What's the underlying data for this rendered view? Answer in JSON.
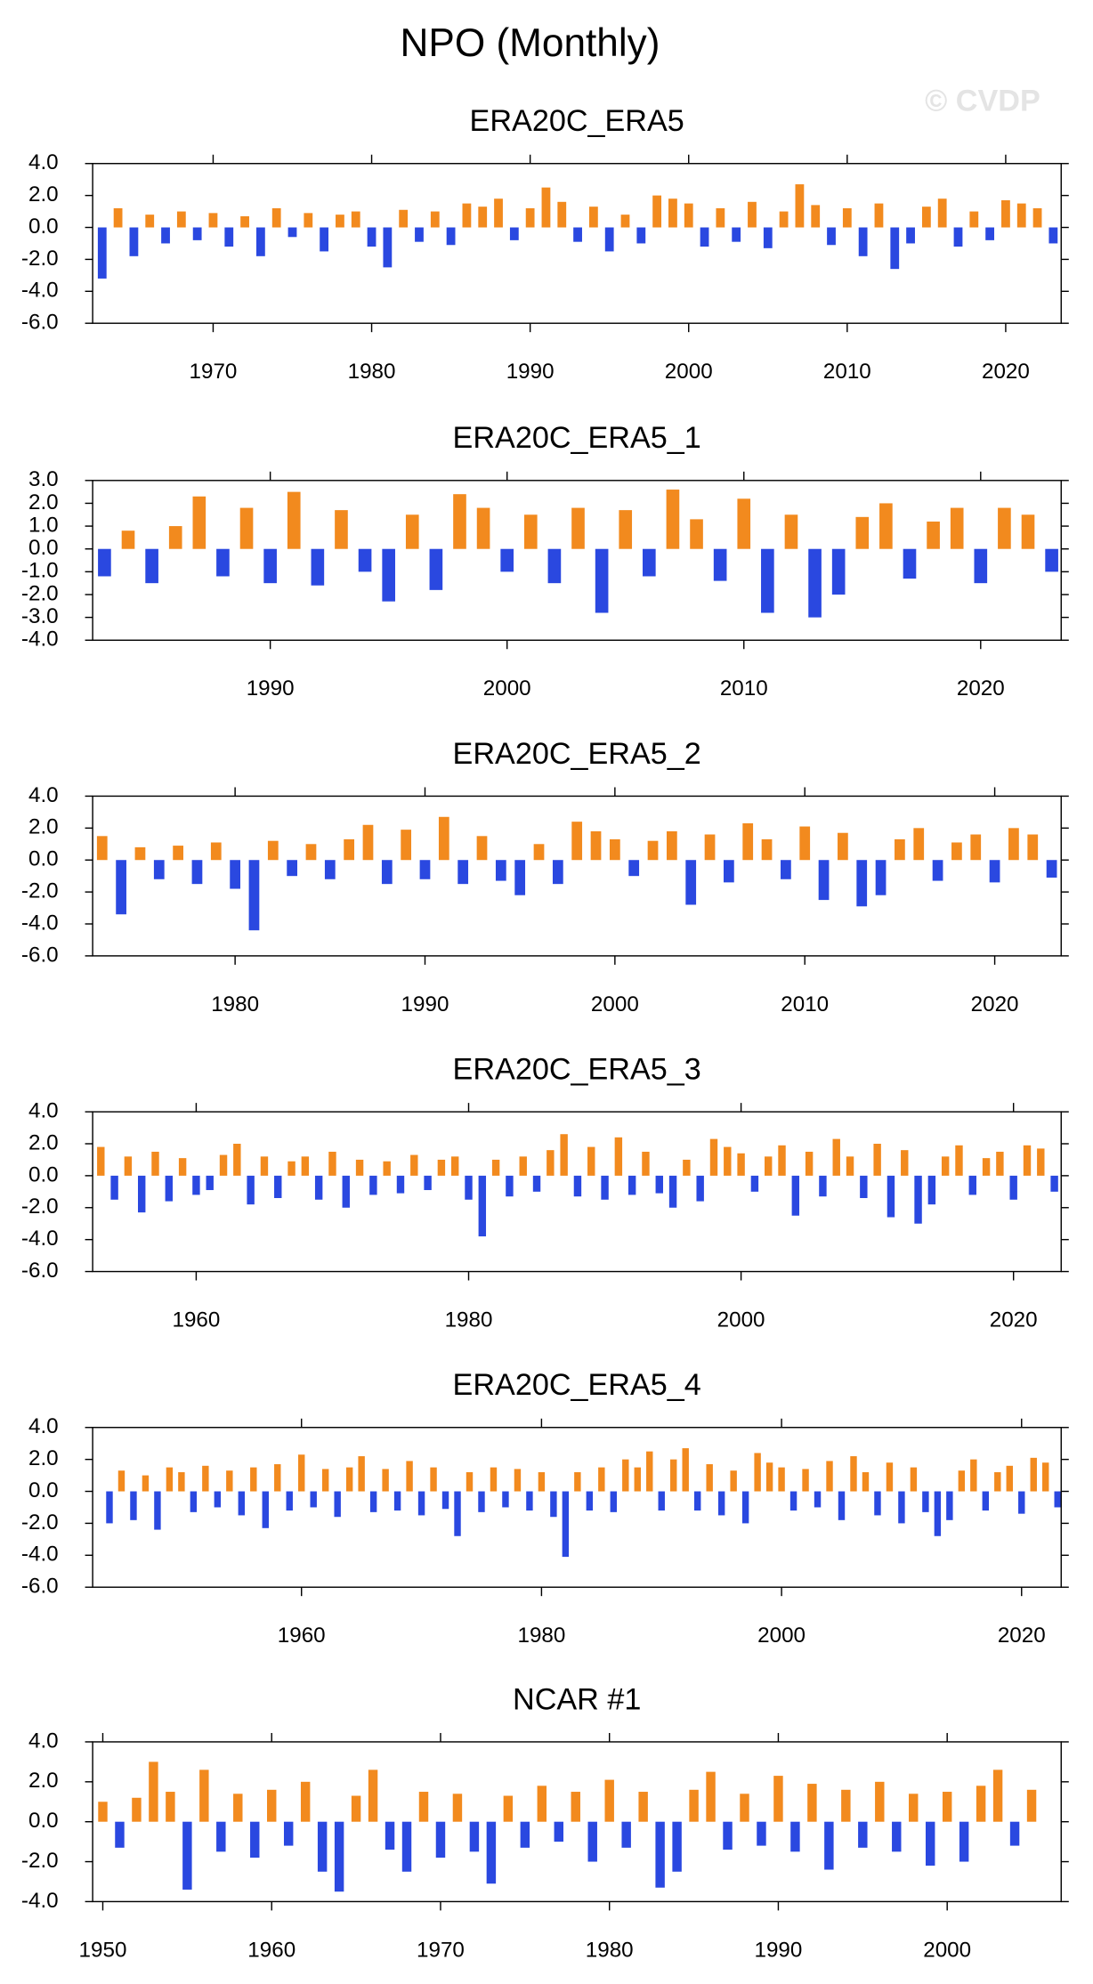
{
  "title": "NPO (Monthly)",
  "watermark": "© CVDP",
  "chart_data": [
    {
      "type": "bar",
      "title": "ERA20C_ERA5",
      "positive_color": "#f28a1e",
      "negative_color": "#2a48e0",
      "x": [
        1963,
        1964,
        1965,
        1966,
        1967,
        1968,
        1969,
        1970,
        1971,
        1972,
        1973,
        1974,
        1975,
        1976,
        1977,
        1978,
        1979,
        1980,
        1981,
        1982,
        1983,
        1984,
        1985,
        1986,
        1987,
        1988,
        1989,
        1990,
        1991,
        1992,
        1993,
        1994,
        1995,
        1996,
        1997,
        1998,
        1999,
        2000,
        2001,
        2002,
        2003,
        2004,
        2005,
        2006,
        2007,
        2008,
        2009,
        2010,
        2011,
        2012,
        2013,
        2014,
        2015,
        2016,
        2017,
        2018,
        2019,
        2020,
        2021,
        2022,
        2023
      ],
      "values": [
        -3.2,
        1.2,
        -1.8,
        0.8,
        -1.0,
        1.0,
        -0.8,
        0.9,
        -1.2,
        0.7,
        -1.8,
        1.2,
        -0.6,
        0.9,
        -1.5,
        0.8,
        1.0,
        -1.2,
        -2.5,
        1.1,
        -0.9,
        1.0,
        -1.1,
        1.5,
        1.3,
        1.8,
        -0.8,
        1.2,
        2.5,
        1.6,
        -0.9,
        1.3,
        -1.5,
        0.8,
        -1.0,
        2.0,
        1.8,
        1.5,
        -1.2,
        1.2,
        -0.9,
        1.6,
        -1.3,
        1.0,
        2.7,
        1.4,
        -1.1,
        1.2,
        -1.8,
        1.5,
        -2.6,
        -1.0,
        1.3,
        1.8,
        -1.2,
        1.0,
        -0.8,
        1.7,
        1.5,
        1.2,
        -1.0
      ],
      "xlim": [
        1962.4,
        2023.5
      ],
      "ylim": [
        -6,
        4
      ],
      "xticks": [
        1970,
        1980,
        1990,
        2000,
        2010,
        2020
      ],
      "yticks": [
        {
          "value": -6,
          "label": "-6.0"
        },
        {
          "value": -4,
          "label": "-4.0"
        },
        {
          "value": -2,
          "label": "-2.0"
        },
        {
          "value": 0,
          "label": "0.0"
        },
        {
          "value": 2,
          "label": "2.0"
        },
        {
          "value": 4,
          "label": "4.0"
        }
      ]
    },
    {
      "type": "bar",
      "title": "ERA20C_ERA5_1",
      "positive_color": "#f28a1e",
      "negative_color": "#2a48e0",
      "x": [
        1983,
        1984,
        1985,
        1986,
        1987,
        1988,
        1989,
        1990,
        1991,
        1992,
        1993,
        1994,
        1995,
        1996,
        1997,
        1998,
        1999,
        2000,
        2001,
        2002,
        2003,
        2004,
        2005,
        2006,
        2007,
        2008,
        2009,
        2010,
        2011,
        2012,
        2013,
        2014,
        2015,
        2016,
        2017,
        2018,
        2019,
        2020,
        2021,
        2022,
        2023
      ],
      "values": [
        -1.2,
        0.8,
        -1.5,
        1.0,
        2.3,
        -1.2,
        1.8,
        -1.5,
        2.5,
        -1.6,
        1.7,
        -1.0,
        -2.3,
        1.5,
        -1.8,
        2.4,
        1.8,
        -1.0,
        1.5,
        -1.5,
        1.8,
        -2.8,
        1.7,
        -1.2,
        2.6,
        1.3,
        -1.4,
        2.2,
        -2.8,
        1.5,
        -3.0,
        -2.0,
        1.4,
        2.0,
        -1.3,
        1.2,
        1.8,
        -1.5,
        1.8,
        1.5,
        -1.0
      ],
      "xlim": [
        1982.5,
        2023.4
      ],
      "ylim": [
        -4,
        3
      ],
      "xticks": [
        1990,
        2000,
        2010,
        2020
      ],
      "yticks": [
        {
          "value": -4,
          "label": "-4.0"
        },
        {
          "value": -3,
          "label": "-3.0"
        },
        {
          "value": -2,
          "label": "-2.0"
        },
        {
          "value": -1,
          "label": "-1.0"
        },
        {
          "value": 0,
          "label": "0.0"
        },
        {
          "value": 1,
          "label": "1.0"
        },
        {
          "value": 2,
          "label": "2.0"
        },
        {
          "value": 3,
          "label": "3.0"
        }
      ]
    },
    {
      "type": "bar",
      "title": "ERA20C_ERA5_2",
      "positive_color": "#f28a1e",
      "negative_color": "#2a48e0",
      "x": [
        1973,
        1974,
        1975,
        1976,
        1977,
        1978,
        1979,
        1980,
        1981,
        1982,
        1983,
        1984,
        1985,
        1986,
        1987,
        1988,
        1989,
        1990,
        1991,
        1992,
        1993,
        1994,
        1995,
        1996,
        1997,
        1998,
        1999,
        2000,
        2001,
        2002,
        2003,
        2004,
        2005,
        2006,
        2007,
        2008,
        2009,
        2010,
        2011,
        2012,
        2013,
        2014,
        2015,
        2016,
        2017,
        2018,
        2019,
        2020,
        2021,
        2022,
        2023
      ],
      "values": [
        1.5,
        -3.4,
        0.8,
        -1.2,
        0.9,
        -1.5,
        1.1,
        -1.8,
        -4.4,
        1.2,
        -1.0,
        1.0,
        -1.2,
        1.3,
        2.2,
        -1.5,
        1.9,
        -1.2,
        2.7,
        -1.5,
        1.5,
        -1.3,
        -2.2,
        1.0,
        -1.5,
        2.4,
        1.8,
        1.3,
        -1.0,
        1.2,
        1.8,
        -2.8,
        1.6,
        -1.4,
        2.3,
        1.3,
        -1.2,
        2.1,
        -2.5,
        1.7,
        -2.9,
        -2.2,
        1.3,
        2.0,
        -1.3,
        1.1,
        1.6,
        -1.4,
        2.0,
        1.6,
        -1.1
      ],
      "xlim": [
        1972.5,
        2023.5
      ],
      "ylim": [
        -6,
        4
      ],
      "xticks": [
        1980,
        1990,
        2000,
        2010,
        2020
      ],
      "yticks": [
        {
          "value": -6,
          "label": "-6.0"
        },
        {
          "value": -4,
          "label": "-4.0"
        },
        {
          "value": -2,
          "label": "-2.0"
        },
        {
          "value": 0,
          "label": "0.0"
        },
        {
          "value": 2,
          "label": "2.0"
        },
        {
          "value": 4,
          "label": "4.0"
        }
      ]
    },
    {
      "type": "bar",
      "title": "ERA20C_ERA5_3",
      "positive_color": "#f28a1e",
      "negative_color": "#2a48e0",
      "x": [
        1953,
        1954,
        1955,
        1956,
        1957,
        1958,
        1959,
        1960,
        1961,
        1962,
        1963,
        1964,
        1965,
        1966,
        1967,
        1968,
        1969,
        1970,
        1971,
        1972,
        1973,
        1974,
        1975,
        1976,
        1977,
        1978,
        1979,
        1980,
        1981,
        1982,
        1983,
        1984,
        1985,
        1986,
        1987,
        1988,
        1989,
        1990,
        1991,
        1992,
        1993,
        1994,
        1995,
        1996,
        1997,
        1998,
        1999,
        2000,
        2001,
        2002,
        2003,
        2004,
        2005,
        2006,
        2007,
        2008,
        2009,
        2010,
        2011,
        2012,
        2013,
        2014,
        2015,
        2016,
        2017,
        2018,
        2019,
        2020,
        2021,
        2022,
        2023
      ],
      "values": [
        1.8,
        -1.5,
        1.2,
        -2.3,
        1.5,
        -1.6,
        1.1,
        -1.2,
        -0.9,
        1.3,
        2.0,
        -1.8,
        1.2,
        -1.4,
        0.9,
        1.2,
        -1.5,
        1.5,
        -2.0,
        1.0,
        -1.2,
        0.9,
        -1.1,
        1.3,
        -0.9,
        1.0,
        1.2,
        -1.5,
        -3.8,
        1.0,
        -1.3,
        1.2,
        -1.0,
        1.6,
        2.6,
        -1.3,
        1.8,
        -1.5,
        2.4,
        -1.2,
        1.5,
        -1.1,
        -2.0,
        1.0,
        -1.6,
        2.3,
        1.8,
        1.4,
        -1.0,
        1.2,
        1.9,
        -2.5,
        1.5,
        -1.3,
        2.3,
        1.2,
        -1.4,
        2.0,
        -2.6,
        1.6,
        -3.0,
        -1.8,
        1.2,
        1.9,
        -1.2,
        1.1,
        1.5,
        -1.5,
        1.9,
        1.7,
        -1.0
      ],
      "xlim": [
        1952.4,
        2023.5
      ],
      "ylim": [
        -6,
        4
      ],
      "xticks": [
        1960,
        1980,
        2000,
        2020
      ],
      "yticks": [
        {
          "value": -6,
          "label": "-6.0"
        },
        {
          "value": -4,
          "label": "-4.0"
        },
        {
          "value": -2,
          "label": "-2.0"
        },
        {
          "value": 0,
          "label": "0.0"
        },
        {
          "value": 2,
          "label": "2.0"
        },
        {
          "value": 4,
          "label": "4.0"
        }
      ]
    },
    {
      "type": "bar",
      "title": "ERA20C_ERA5_4",
      "positive_color": "#f28a1e",
      "negative_color": "#2a48e0",
      "x": [
        1944,
        1945,
        1946,
        1947,
        1948,
        1949,
        1950,
        1951,
        1952,
        1953,
        1954,
        1955,
        1956,
        1957,
        1958,
        1959,
        1960,
        1961,
        1962,
        1963,
        1964,
        1965,
        1966,
        1967,
        1968,
        1969,
        1970,
        1971,
        1972,
        1973,
        1974,
        1975,
        1976,
        1977,
        1978,
        1979,
        1980,
        1981,
        1982,
        1983,
        1984,
        1985,
        1986,
        1987,
        1988,
        1989,
        1990,
        1991,
        1992,
        1993,
        1994,
        1995,
        1996,
        1997,
        1998,
        1999,
        2000,
        2001,
        2002,
        2003,
        2004,
        2005,
        2006,
        2007,
        2008,
        2009,
        2010,
        2011,
        2012,
        2013,
        2014,
        2015,
        2016,
        2017,
        2018,
        2019,
        2020,
        2021,
        2022,
        2023
      ],
      "values": [
        -2.0,
        1.3,
        -1.8,
        1.0,
        -2.4,
        1.5,
        1.2,
        -1.3,
        1.6,
        -1.0,
        1.3,
        -1.5,
        1.5,
        -2.3,
        1.7,
        -1.2,
        2.3,
        -1.0,
        1.4,
        -1.6,
        1.5,
        2.2,
        -1.3,
        1.4,
        -1.2,
        1.9,
        -1.5,
        1.5,
        -1.1,
        -2.8,
        1.2,
        -1.3,
        1.5,
        -1.0,
        1.4,
        -1.2,
        1.2,
        -1.6,
        -4.1,
        1.2,
        -1.2,
        1.5,
        -1.3,
        2.0,
        1.5,
        2.5,
        -1.2,
        2.0,
        2.7,
        -1.2,
        1.7,
        -1.5,
        1.3,
        -2.0,
        2.4,
        1.8,
        1.5,
        -1.2,
        1.4,
        -1.0,
        1.9,
        -1.8,
        2.2,
        1.2,
        -1.5,
        1.8,
        -2.0,
        1.5,
        -1.3,
        -2.8,
        -1.8,
        1.3,
        2.0,
        -1.2,
        1.2,
        1.6,
        -1.4,
        2.1,
        1.8,
        -1.0
      ],
      "xlim": [
        1942.6,
        2023.3
      ],
      "ylim": [
        -6,
        4
      ],
      "xticks": [
        1960,
        1980,
        2000,
        2020
      ],
      "yticks": [
        {
          "value": -6,
          "label": "-6.0"
        },
        {
          "value": -4,
          "label": "-4.0"
        },
        {
          "value": -2,
          "label": "-2.0"
        },
        {
          "value": 0,
          "label": "0.0"
        },
        {
          "value": 2,
          "label": "2.0"
        },
        {
          "value": 4,
          "label": "4.0"
        }
      ]
    },
    {
      "type": "bar",
      "title": "NCAR #1",
      "positive_color": "#f28a1e",
      "negative_color": "#2a48e0",
      "x": [
        1950,
        1951,
        1952,
        1953,
        1954,
        1955,
        1956,
        1957,
        1958,
        1959,
        1960,
        1961,
        1962,
        1963,
        1964,
        1965,
        1966,
        1967,
        1968,
        1969,
        1970,
        1971,
        1972,
        1973,
        1974,
        1975,
        1976,
        1977,
        1978,
        1979,
        1980,
        1981,
        1982,
        1983,
        1984,
        1985,
        1986,
        1987,
        1988,
        1989,
        1990,
        1991,
        1992,
        1993,
        1994,
        1995,
        1996,
        1997,
        1998,
        1999,
        2000,
        2001,
        2002,
        2003,
        2004,
        2005
      ],
      "values": [
        1.0,
        -1.3,
        1.2,
        3.0,
        1.5,
        -3.4,
        2.6,
        -1.5,
        1.4,
        -1.8,
        1.6,
        -1.2,
        2.0,
        -2.5,
        -3.5,
        1.3,
        2.6,
        -1.4,
        -2.5,
        1.5,
        -1.8,
        1.4,
        -1.5,
        -3.1,
        1.3,
        -1.3,
        1.8,
        -1.0,
        1.5,
        -2.0,
        2.1,
        -1.3,
        1.5,
        -3.3,
        -2.5,
        1.6,
        2.5,
        -1.4,
        1.4,
        -1.2,
        2.3,
        -1.5,
        1.9,
        -2.4,
        1.6,
        -1.3,
        2.0,
        -1.5,
        1.4,
        -2.2,
        1.5,
        -2.0,
        1.8,
        2.6,
        -1.2,
        1.6
      ],
      "xlim": [
        1949.4,
        2006.75
      ],
      "ylim": [
        -4,
        4
      ],
      "xticks": [
        1950,
        1960,
        1970,
        1980,
        1990,
        2000
      ],
      "yticks": [
        {
          "value": -4,
          "label": "-4.0"
        },
        {
          "value": -2,
          "label": "-2.0"
        },
        {
          "value": 0,
          "label": "0.0"
        },
        {
          "value": 2,
          "label": "2.0"
        },
        {
          "value": 4,
          "label": "4.0"
        }
      ]
    }
  ]
}
